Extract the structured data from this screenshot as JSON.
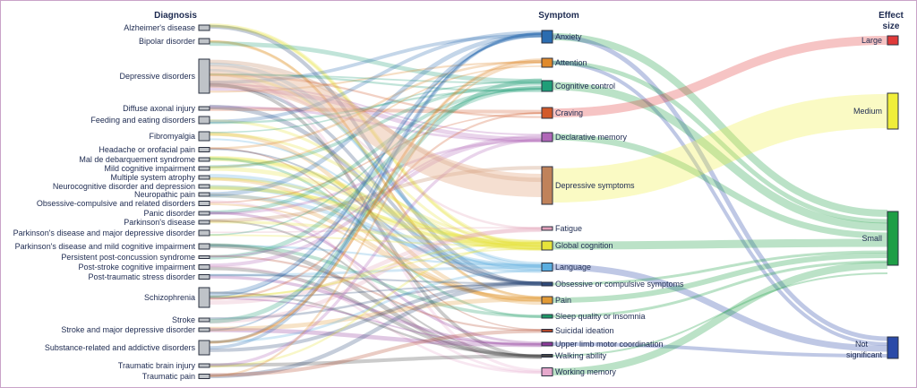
{
  "headers": {
    "diagnosis": "Diagnosis",
    "symptom": "Symptom",
    "effect_line1": "Effect",
    "effect_line2": "size"
  },
  "diagnoses": [
    "Alzheimer's disease",
    "Bipolar disorder",
    "Depressive disorders",
    "Diffuse axonal injury",
    "Feeding and eating disorders",
    "Fibromyalgia",
    "Headache or orofacial pain",
    "Mal de debarquement syndrome",
    "Mild cognitive impairment",
    "Multiple system atrophy",
    "Neurocognitive disorder and depression",
    "Neuropathic pain",
    "Obsessive-compulsive and related disorders",
    "Panic disorder",
    "Parkinson's disease",
    "Parkinson's disease and major depressive disorder",
    "Parkinson's disease and mild cognitive impairment",
    "Persistent post-concussion syndrome",
    "Post-stroke cognitive impairment",
    "Post-traumatic stress disorder",
    "Schizophrenia",
    "Stroke",
    "Stroke and major depressive disorder",
    "Substance-related and addictive disorders",
    "Traumatic brain injury",
    "Traumatic pain"
  ],
  "symptoms": [
    {
      "label": "Anxiety",
      "color": "#2b6cb0"
    },
    {
      "label": "Attention",
      "color": "#e08a2c"
    },
    {
      "label": "Cognitive control",
      "color": "#1f9e78"
    },
    {
      "label": "Craving",
      "color": "#d25a2a"
    },
    {
      "label": "Declarative memory",
      "color": "#b066b8"
    },
    {
      "label": "Depressive symptoms",
      "color": "#c0825a"
    },
    {
      "label": "Fatigue",
      "color": "#e3a0b8"
    },
    {
      "label": "Global cognition",
      "color": "#e6e33a"
    },
    {
      "label": "Language",
      "color": "#5aaee0"
    },
    {
      "label": "Obsessive or compulsive symptoms",
      "color": "#2f4a7a"
    },
    {
      "label": "Pain",
      "color": "#e29a35"
    },
    {
      "label": "Sleep quality or insomnia",
      "color": "#1e9a66"
    },
    {
      "label": "Suicidal ideation",
      "color": "#b5482a"
    },
    {
      "label": "Upper limb motor coordination",
      "color": "#8e3a9a"
    },
    {
      "label": "Walking ability",
      "color": "#444444"
    },
    {
      "label": "Working memory",
      "color": "#e6a8cc"
    }
  ],
  "effect_sizes": [
    {
      "label": "Large",
      "color": "#e03a3a"
    },
    {
      "label": "Medium",
      "color": "#f0ee3a"
    },
    {
      "label": "Small",
      "color": "#1e9e46"
    },
    {
      "label": "Not significant",
      "color": "#2a4aa8"
    }
  ],
  "flows": [
    {
      "from": "Anxiety",
      "to": "Small"
    },
    {
      "from": "Anxiety",
      "to": "Not significant"
    },
    {
      "from": "Attention",
      "to": "Not significant"
    },
    {
      "from": "Attention",
      "to": "Small"
    },
    {
      "from": "Cognitive control",
      "to": "Small"
    },
    {
      "from": "Craving",
      "to": "Large"
    },
    {
      "from": "Declarative memory",
      "to": "Small"
    },
    {
      "from": "Depressive symptoms",
      "to": "Medium"
    },
    {
      "from": "Global cognition",
      "to": "Small"
    },
    {
      "from": "Language",
      "to": "Not significant"
    },
    {
      "from": "Obsessive or compulsive symptoms",
      "to": "Small"
    },
    {
      "from": "Pain",
      "to": "Small"
    },
    {
      "from": "Sleep quality or insomnia",
      "to": "Small"
    },
    {
      "from": "Upper limb motor coordination",
      "to": "Not significant"
    },
    {
      "from": "Working memory",
      "to": "Small"
    },
    {
      "from": "Walking ability",
      "to": "Small"
    }
  ]
}
